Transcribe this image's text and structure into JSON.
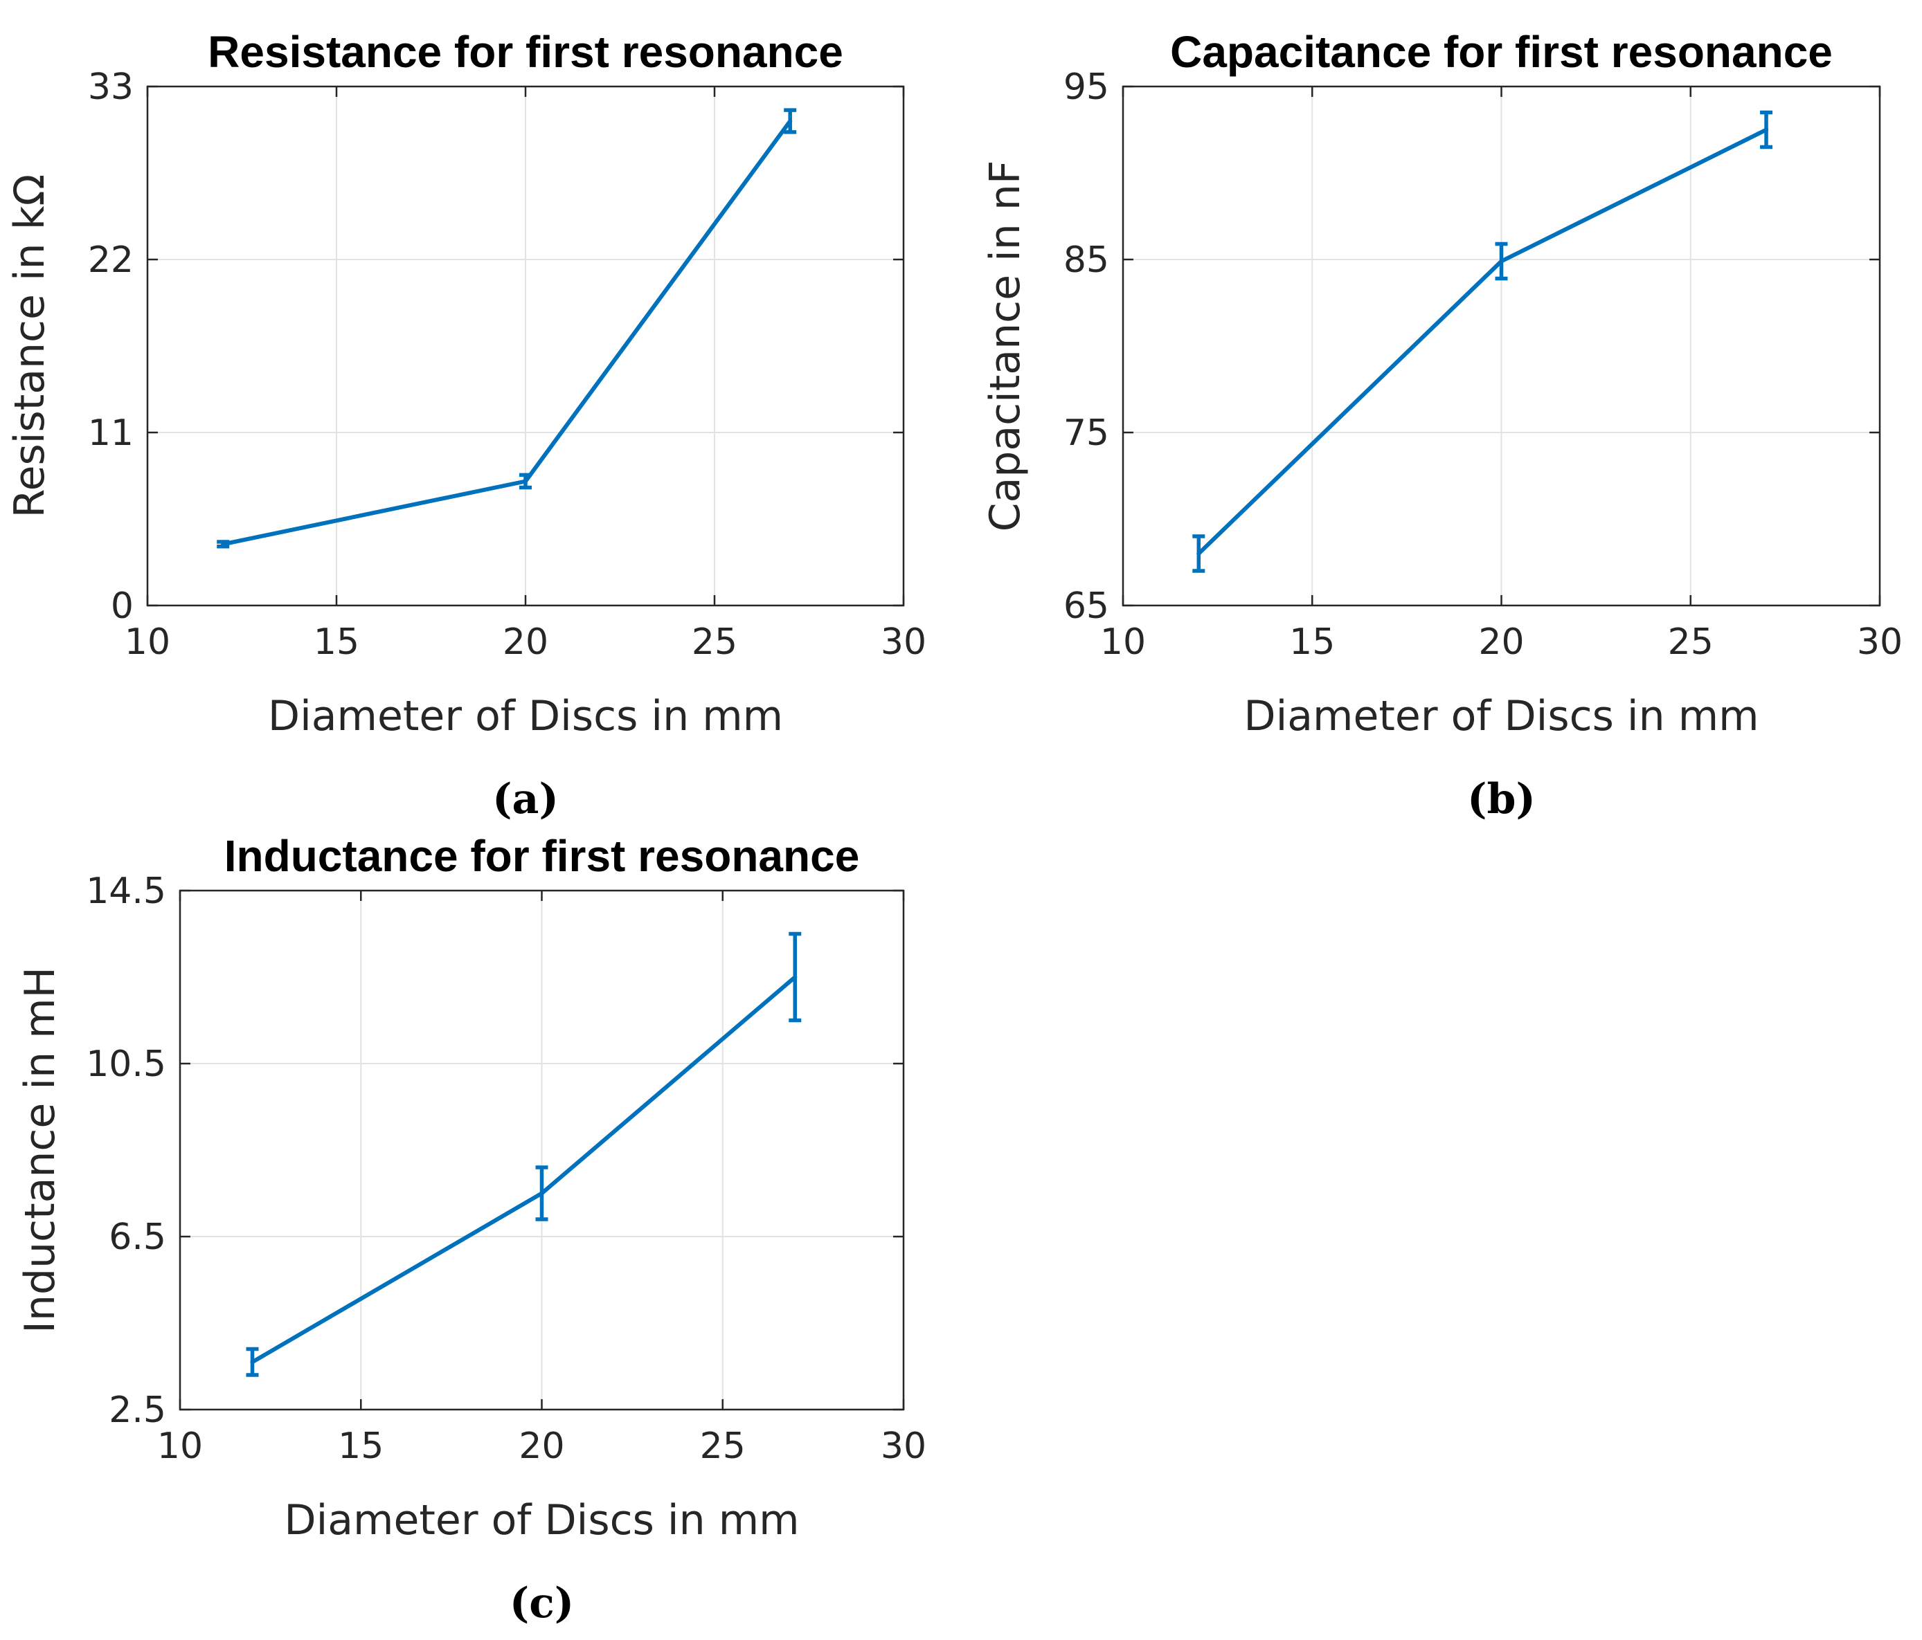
{
  "accent_color": "#0072bd",
  "chart_data": [
    {
      "type": "line",
      "title": "Resistance for first resonance",
      "xlabel": "Diameter of Discs in mm",
      "ylabel": "Resistance in kΩ",
      "caption": "(a)",
      "xlim": [
        10,
        30
      ],
      "ylim": [
        0,
        33
      ],
      "xticks": [
        10,
        15,
        20,
        25,
        30
      ],
      "yticks": [
        0,
        11,
        22,
        33
      ],
      "xtick_labels": [
        "10",
        "15",
        "20",
        "25",
        "30"
      ],
      "ytick_labels": [
        "0",
        "11",
        "22",
        "33"
      ],
      "grid": true,
      "series": [
        {
          "name": "Resistance",
          "x": [
            12,
            20,
            27
          ],
          "y": [
            3.9,
            7.9,
            30.8
          ],
          "err": [
            0.15,
            0.4,
            0.7
          ]
        }
      ]
    },
    {
      "type": "line",
      "title": "Capacitance for first resonance",
      "xlabel": "Diameter of Discs in mm",
      "ylabel": "Capacitance in nF",
      "caption": "(b)",
      "xlim": [
        10,
        30
      ],
      "ylim": [
        65,
        95
      ],
      "xticks": [
        10,
        15,
        20,
        25,
        30
      ],
      "yticks": [
        65,
        75,
        85,
        95
      ],
      "xtick_labels": [
        "10",
        "15",
        "20",
        "25",
        "30"
      ],
      "ytick_labels": [
        "65",
        "75",
        "85",
        "95"
      ],
      "grid": true,
      "series": [
        {
          "name": "Capacitance",
          "x": [
            12,
            20,
            27
          ],
          "y": [
            68.0,
            84.9,
            92.5
          ],
          "err": [
            1.0,
            1.0,
            1.0
          ]
        }
      ]
    },
    {
      "type": "line",
      "title": "Inductance for first resonance",
      "xlabel": "Diameter of Discs in mm",
      "ylabel": "Inductance in mH",
      "caption": "(c)",
      "xlim": [
        10,
        30
      ],
      "ylim": [
        2.5,
        14.5
      ],
      "xticks": [
        10,
        15,
        20,
        25,
        30
      ],
      "yticks": [
        2.5,
        6.5,
        10.5,
        14.5
      ],
      "xtick_labels": [
        "10",
        "15",
        "20",
        "25",
        "30"
      ],
      "ytick_labels": [
        "2.5",
        "6.5",
        "10.5",
        "14.5"
      ],
      "grid": true,
      "series": [
        {
          "name": "Inductance",
          "x": [
            12,
            20,
            27
          ],
          "y": [
            3.6,
            7.5,
            12.5
          ],
          "err": [
            0.3,
            0.6,
            1.0
          ]
        }
      ]
    }
  ]
}
